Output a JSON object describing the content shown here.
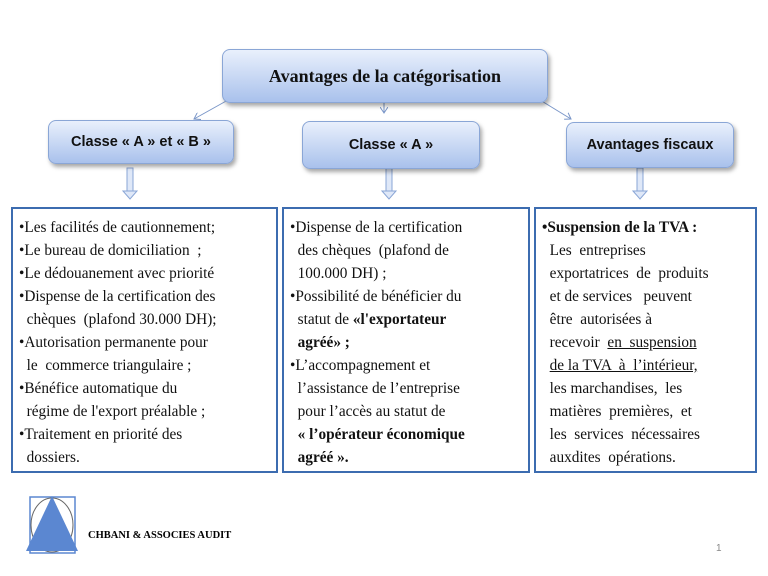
{
  "title": "Avantages de la catégorisation",
  "categories": [
    "Classe « A » et « B »",
    "Classe « A »",
    "Avantages fiscaux"
  ],
  "boxes": [
    [
      [
        {
          "t": "•Les facilités de cautionnement;"
        }
      ],
      [
        {
          "t": "•Le bureau de domiciliation  ;"
        }
      ],
      [
        {
          "t": "•Le dédouanement avec priorité"
        }
      ],
      [
        {
          "t": "•Dispense de la certification des"
        }
      ],
      [
        {
          "t": "  chèques  (plafond 30.000 DH);"
        }
      ],
      [
        {
          "t": "•Autorisation permanente pour"
        }
      ],
      [
        {
          "t": "  le  commerce triangulaire ;"
        }
      ],
      [
        {
          "t": "•Bénéfice automatique du"
        }
      ],
      [
        {
          "t": "  régime de l'export préalable ;"
        }
      ],
      [
        {
          "t": "•Traitement en priorité des"
        }
      ],
      [
        {
          "t": "  dossiers."
        }
      ]
    ],
    [
      [
        {
          "t": "•Dispense de la certification"
        }
      ],
      [
        {
          "t": "  des chèques  (plafond de"
        }
      ],
      [
        {
          "t": "  100.000 DH) ;"
        }
      ],
      [
        {
          "t": "•Possibilité de bénéficier du"
        }
      ],
      [
        {
          "t": "  statut de "
        },
        {
          "t": "«l'exportateur",
          "b": true
        }
      ],
      [
        {
          "t": "  agréé» ;",
          "b": true
        }
      ],
      [
        {
          "t": "•L’accompagnement et"
        }
      ],
      [
        {
          "t": "  l’assistance de l’entreprise"
        }
      ],
      [
        {
          "t": "  pour l’accès au statut de"
        }
      ],
      [
        {
          "t": "  « l’opérateur économique",
          "b": true
        }
      ],
      [
        {
          "t": "  agréé ».",
          "b": true
        }
      ]
    ],
    [
      [
        {
          "t": "•Suspension de la TVA :",
          "b": true
        }
      ],
      [
        {
          "t": "  Les  entreprises"
        }
      ],
      [
        {
          "t": "  exportatrices  de  produits"
        }
      ],
      [
        {
          "t": "  et de services   peuvent"
        }
      ],
      [
        {
          "t": "  être  autorisées à"
        }
      ],
      [
        {
          "t": "  recevoir  "
        },
        {
          "t": "en  suspension",
          "u": true
        }
      ],
      [
        {
          "t": "  "
        },
        {
          "t": "de la TVA  à  l’intérieur,",
          "u": true
        }
      ],
      [
        {
          "t": "  les marchandises,  les"
        }
      ],
      [
        {
          "t": "  matières  premières,  et"
        }
      ],
      [
        {
          "t": "  les  services  nécessaires"
        }
      ],
      [
        {
          "t": "  auxdites  opérations."
        }
      ]
    ]
  ],
  "footer": {
    "company": "CHBANI & ASSOCIES AUDIT",
    "page": "1"
  },
  "colors": {
    "border": "#3c6cb0",
    "node": "#a9c1ec",
    "logo": "#5b87d1"
  }
}
